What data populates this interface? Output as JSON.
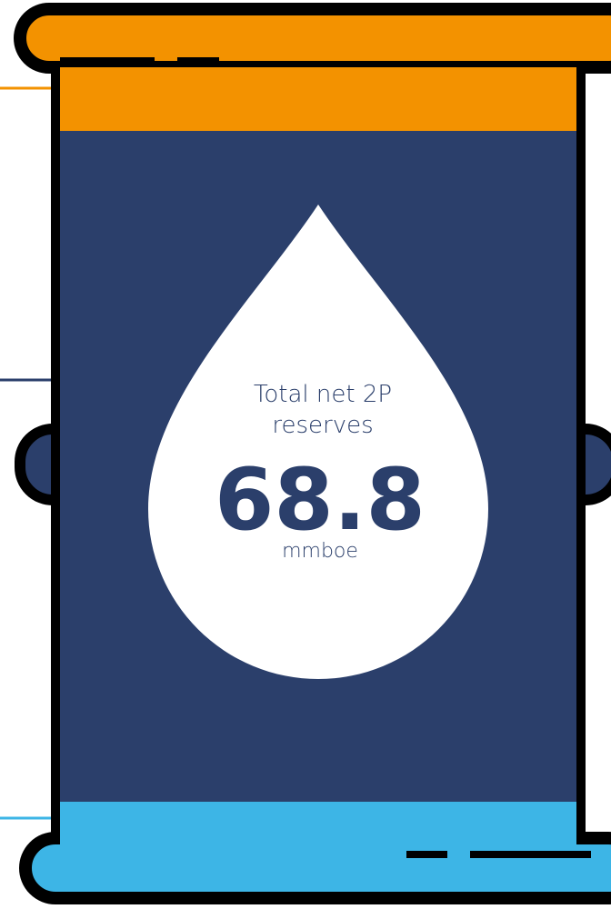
{
  "label_lines": [
    "Total net 2P",
    "reserves"
  ],
  "value": "68.8",
  "unit": "mmboe"
}
